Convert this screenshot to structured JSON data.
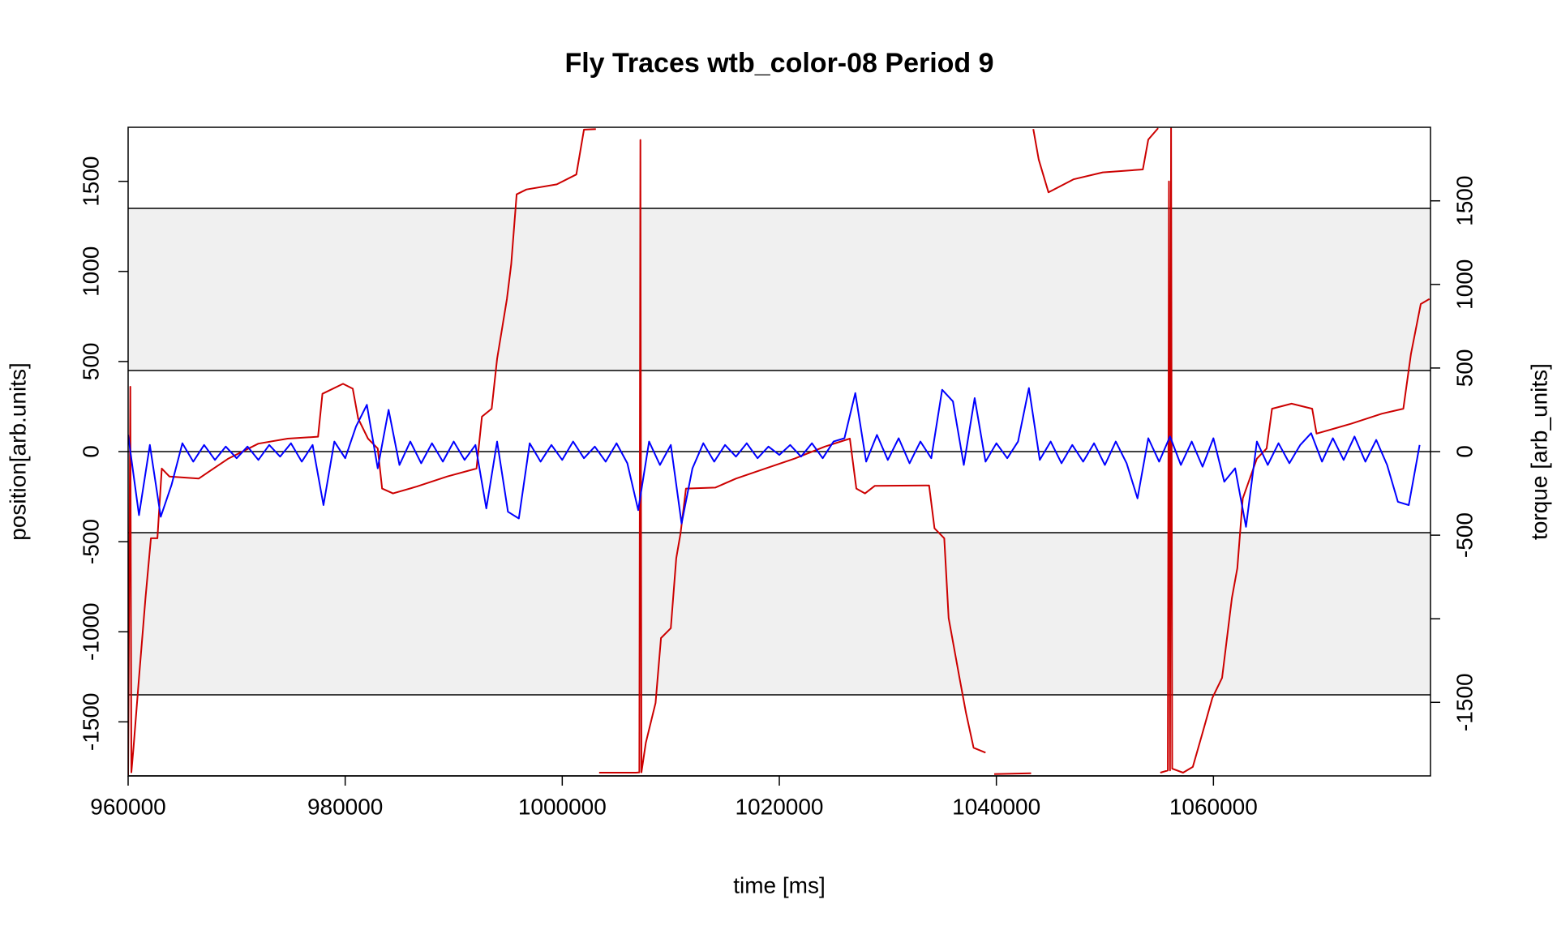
{
  "chart_data": {
    "type": "line",
    "title": "Fly Traces wtb_color-08 Period 9",
    "x_label": "time [ms]",
    "y_label": "position[arb.units]",
    "y2_label": "torque [arb_units]",
    "xlim": [
      960000,
      1080000
    ],
    "xticks": [
      960000,
      980000,
      1000000,
      1020000,
      1040000,
      1060000
    ],
    "ylim": [
      -1800,
      1800
    ],
    "yticks": [
      -1500,
      -1000,
      -500,
      0,
      500,
      1000,
      1500
    ],
    "y2lim": [
      -1940,
      1940
    ],
    "y2ticks": [
      -1500,
      {
        "value": -1000,
        "label": null
      },
      -500,
      0,
      500,
      1000,
      1500
    ],
    "bands": [
      {
        "from": 450,
        "to": 1350,
        "color": "#f0f0f0"
      },
      {
        "from": -1350,
        "to": -450,
        "color": "#f0f0f0"
      }
    ],
    "hlines": [
      1350,
      450,
      0,
      -450,
      -1350
    ],
    "series": [
      {
        "name": "position",
        "color": "#cc0000",
        "x": [
          960000,
          960200,
          960300,
          960500,
          961000,
          961600,
          962100,
          962700,
          963100,
          963800,
          966500,
          969200,
          972000,
          974700,
          977500,
          977900,
          979800,
          980700,
          981200,
          982100,
          983000,
          983400,
          984400,
          986600,
          989400,
          992100,
          992600,
          993500,
          994000,
          994900,
          995300,
          995800,
          996700,
          999500,
          1001300,
          1002000,
          1003100,
          null,
          1003400,
          1006800,
          1007100,
          1007200,
          1007300,
          1007700,
          1008600,
          1009100,
          1010000,
          1010500,
          1010900,
          1011400,
          1014100,
          1016000,
          1018700,
          1021400,
          1024200,
          1026500,
          1027100,
          1027900,
          1028800,
          1033800,
          1034300,
          1035200,
          1035600,
          1036600,
          1037200,
          1037900,
          1039000,
          null,
          1039800,
          1043200,
          null,
          1043400,
          1043900,
          1044800,
          1047100,
          1049800,
          1053500,
          1054000,
          1054900,
          null,
          1055100,
          1055800,
          1055900,
          1056000,
          1056100,
          1056200,
          1057200,
          1058100,
          1059000,
          1059900,
          1060800,
          1061700,
          1062200,
          1062700,
          1064000,
          1064900,
          1065400,
          1067200,
          1069100,
          1069500,
          1072700,
          1075500,
          1077500,
          1078200,
          1079100,
          1079900
        ],
        "values": [
          -1800,
          360,
          -1780,
          -1640,
          -1256,
          -813,
          -481,
          -481,
          -94,
          -138,
          -150,
          -40,
          44,
          72,
          83,
          321,
          376,
          349,
          183,
          72,
          17,
          -205,
          -232,
          -194,
          -138,
          -94,
          194,
          238,
          515,
          847,
          1040,
          1428,
          1455,
          1483,
          1538,
          1787,
          1790,
          null,
          -1782,
          -1782,
          -1780,
          1730,
          -1780,
          -1616,
          -1395,
          -1035,
          -980,
          -592,
          -454,
          -205,
          -200,
          -150,
          -94,
          -39,
          28,
          72,
          -205,
          -232,
          -190,
          -188,
          -426,
          -481,
          -924,
          -1256,
          -1450,
          -1644,
          -1671,
          null,
          -1790,
          -1785,
          null,
          1790,
          1621,
          1439,
          1511,
          1550,
          1566,
          1732,
          1795,
          null,
          -1782,
          -1770,
          1500,
          -1770,
          1800,
          -1760,
          -1782,
          -1750,
          -1561,
          -1367,
          -1256,
          -813,
          -647,
          -260,
          -39,
          17,
          238,
          266,
          238,
          100,
          155,
          210,
          238,
          542,
          819,
          847
        ]
      },
      {
        "name": "torque",
        "color": "#0000ff",
        "axis": "y2",
        "x": [
          960000,
          961000,
          962000,
          963000,
          964000,
          965000,
          966000,
          967000,
          968000,
          969000,
          970000,
          971000,
          972000,
          973000,
          974000,
          975000,
          976000,
          977000,
          978000,
          979000,
          980000,
          981000,
          982000,
          983000,
          984000,
          985000,
          986000,
          987000,
          988000,
          989000,
          990000,
          991000,
          992000,
          993000,
          994000,
          995000,
          996000,
          997000,
          998000,
          999000,
          1000000,
          1001000,
          1002000,
          1003000,
          1004000,
          1005000,
          1006000,
          1007000,
          1008000,
          1009000,
          1010000,
          1011000,
          1012000,
          1013000,
          1014000,
          1015000,
          1016000,
          1017000,
          1018000,
          1019000,
          1020000,
          1021000,
          1022000,
          1023000,
          1024000,
          1025000,
          1026000,
          1027000,
          1028000,
          1029000,
          1030000,
          1031000,
          1032000,
          1033000,
          1034000,
          1035000,
          1036000,
          1037000,
          1038000,
          1039000,
          1040000,
          1041000,
          1042000,
          1043000,
          1044000,
          1045000,
          1046000,
          1047000,
          1048000,
          1049000,
          1050000,
          1051000,
          1052000,
          1053000,
          1054000,
          1055000,
          1056000,
          1057000,
          1058000,
          1059000,
          1060000,
          1061000,
          1062000,
          1063000,
          1064000,
          1065000,
          1066000,
          1067000,
          1068000,
          1069000,
          1070000,
          1071000,
          1072000,
          1073000,
          1074000,
          1075000,
          1076000,
          1077000,
          1078000,
          1079000
        ],
        "values": [
          100,
          -380,
          40,
          -390,
          -200,
          50,
          -60,
          40,
          -50,
          30,
          -40,
          30,
          -50,
          40,
          -30,
          50,
          -60,
          40,
          -320,
          60,
          -40,
          150,
          280,
          -100,
          250,
          -80,
          60,
          -70,
          50,
          -60,
          60,
          -50,
          40,
          -340,
          60,
          -360,
          -400,
          50,
          -60,
          40,
          -50,
          60,
          -40,
          30,
          -60,
          50,
          -70,
          -350,
          60,
          -80,
          40,
          -430,
          -100,
          50,
          -60,
          40,
          -30,
          50,
          -40,
          30,
          -20,
          40,
          -30,
          50,
          -40,
          60,
          80,
          350,
          -60,
          100,
          -50,
          80,
          -70,
          60,
          -40,
          370,
          300,
          -80,
          320,
          -60,
          50,
          -40,
          60,
          380,
          -50,
          60,
          -70,
          40,
          -60,
          50,
          -80,
          60,
          -70,
          -280,
          80,
          -60,
          90,
          -80,
          60,
          -90,
          80,
          -180,
          -100,
          -450,
          60,
          -80,
          50,
          -70,
          40,
          110,
          -60,
          80,
          -50,
          90,
          -60,
          70,
          -80,
          -300,
          -320,
          40
        ]
      }
    ]
  }
}
